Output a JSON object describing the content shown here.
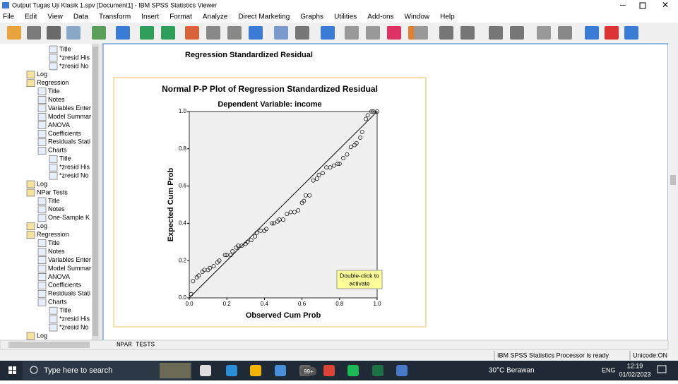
{
  "window": {
    "title": "Output Tugas Uji Klasik 1.spv [Document1] - IBM SPSS Statistics Viewer"
  },
  "menu": [
    "File",
    "Edit",
    "View",
    "Data",
    "Transform",
    "Insert",
    "Format",
    "Analyze",
    "Direct Marketing",
    "Graphs",
    "Utilities",
    "Add-ons",
    "Window",
    "Help"
  ],
  "outline": {
    "items": [
      "Title",
      "*zresid His",
      "*zresid No",
      "Log",
      "Regression",
      "Title",
      "Notes",
      "Variables Enter",
      "Model Summar",
      "ANOVA",
      "Coefficients",
      "Residuals Stati",
      "Charts",
      "Title",
      "*zresid His",
      "*zresid No",
      "Log",
      "NPar Tests",
      "Title",
      "Notes",
      "One-Sample K",
      "Log",
      "Regression",
      "Title",
      "Notes",
      "Variables Enter",
      "Model Summar",
      "ANOVA",
      "Coefficients",
      "Residuals Stati",
      "Charts",
      "Title",
      "*zresid His",
      "*zresid No",
      "Log"
    ]
  },
  "content": {
    "heading": "Regression Standardized Residual",
    "syntax": "NPAR TESTS",
    "tooltip": [
      "Double-click to",
      "activate"
    ]
  },
  "chart": {
    "type": "scatter",
    "title": "Normal P-P Plot of Regression Standardized Residual",
    "subtitle": "Dependent Variable: income",
    "x_label": "Observed Cum Prob",
    "y_label": "Expected Cum Prob",
    "xlim": [
      0,
      1
    ],
    "ylim": [
      0,
      1
    ],
    "xticks": [
      {
        "value": 0,
        "label": "0.0"
      },
      {
        "value": 0.2,
        "label": "0.2"
      },
      {
        "value": 0.4,
        "label": "0.4"
      },
      {
        "value": 0.6,
        "label": "0.6"
      },
      {
        "value": 0.8,
        "label": "0.8"
      },
      {
        "value": 1,
        "label": "1.0"
      }
    ],
    "yticks": [
      {
        "value": 0,
        "label": "0.0"
      },
      {
        "value": 0.2,
        "label": "0.2"
      },
      {
        "value": 0.4,
        "label": "0.4"
      },
      {
        "value": 0.6,
        "label": "0.6"
      },
      {
        "value": 0.8,
        "label": "0.8"
      },
      {
        "value": 1,
        "label": "1.0"
      }
    ],
    "x": [
      0.01,
      0.02,
      0.04,
      0.05,
      0.07,
      0.08,
      0.1,
      0.11,
      0.13,
      0.15,
      0.16,
      0.19,
      0.2,
      0.22,
      0.23,
      0.25,
      0.26,
      0.28,
      0.3,
      0.31,
      0.33,
      0.35,
      0.36,
      0.38,
      0.4,
      0.41,
      0.44,
      0.45,
      0.47,
      0.48,
      0.5,
      0.52,
      0.54,
      0.56,
      0.58,
      0.6,
      0.61,
      0.62,
      0.64,
      0.66,
      0.68,
      0.69,
      0.71,
      0.73,
      0.75,
      0.77,
      0.79,
      0.8,
      0.82,
      0.84,
      0.86,
      0.88,
      0.89,
      0.91,
      0.92,
      0.94,
      0.95,
      0.97,
      0.98,
      1.0
    ],
    "y": [
      0.02,
      0.09,
      0.11,
      0.12,
      0.14,
      0.15,
      0.15,
      0.16,
      0.17,
      0.19,
      0.2,
      0.23,
      0.23,
      0.23,
      0.25,
      0.27,
      0.28,
      0.28,
      0.29,
      0.3,
      0.31,
      0.33,
      0.35,
      0.36,
      0.36,
      0.37,
      0.4,
      0.4,
      0.41,
      0.42,
      0.42,
      0.45,
      0.46,
      0.46,
      0.47,
      0.51,
      0.52,
      0.55,
      0.55,
      0.63,
      0.64,
      0.66,
      0.67,
      0.7,
      0.7,
      0.71,
      0.72,
      0.72,
      0.75,
      0.77,
      0.81,
      0.82,
      0.83,
      0.86,
      0.89,
      0.96,
      0.98,
      1.0,
      1.0,
      1.0
    ]
  },
  "status": {
    "message": "IBM SPSS Statistics Processor is ready",
    "encoding": "Unicode:ON"
  },
  "taskbar": {
    "search": "Type here to search",
    "badge": "99+",
    "weather": "30°C Berawan",
    "language": "ENG",
    "time": "12:19",
    "date": "01/02/2023"
  }
}
